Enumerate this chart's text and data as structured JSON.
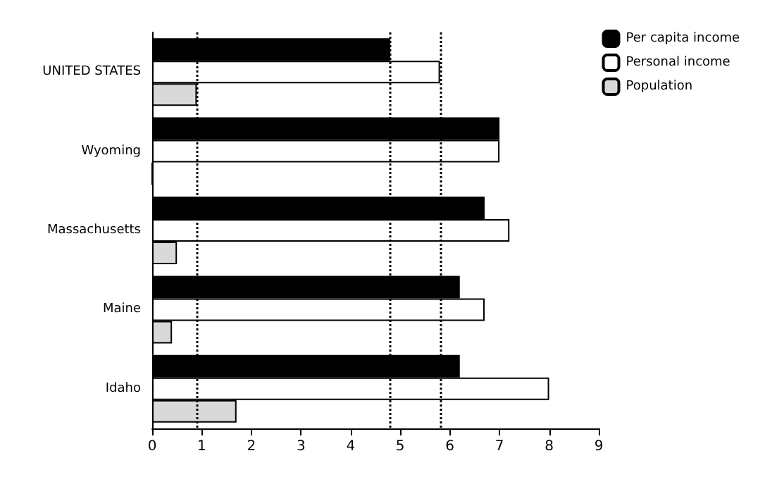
{
  "chart_data": {
    "type": "bar",
    "orientation": "horizontal",
    "categories": [
      "UNITED STATES",
      "Wyoming",
      "Massachusetts",
      "Maine",
      "Idaho"
    ],
    "series": [
      {
        "name": "Per capita income",
        "color": "#000000",
        "values": [
          4.8,
          7.0,
          6.7,
          6.2,
          6.2
        ]
      },
      {
        "name": "Personal income",
        "color": "#ffffff",
        "values": [
          5.8,
          7.0,
          7.2,
          6.7,
          8.0
        ]
      },
      {
        "name": "Population",
        "color": "#d9d9d9",
        "values": [
          0.9,
          0,
          0.5,
          0.4,
          1.7
        ]
      }
    ],
    "xlim": [
      0,
      9
    ],
    "xticks": [
      0,
      1,
      2,
      3,
      4,
      5,
      6,
      7,
      8,
      9
    ],
    "grid": false,
    "legend": "top right",
    "ref_lines": [
      {
        "axis": "x",
        "value": 0.9,
        "line_style": "dotted"
      },
      {
        "axis": "x",
        "value": 4.8,
        "line_style": "dotted"
      },
      {
        "axis": "x",
        "value": 5.8,
        "line_style": "dotted"
      }
    ]
  }
}
